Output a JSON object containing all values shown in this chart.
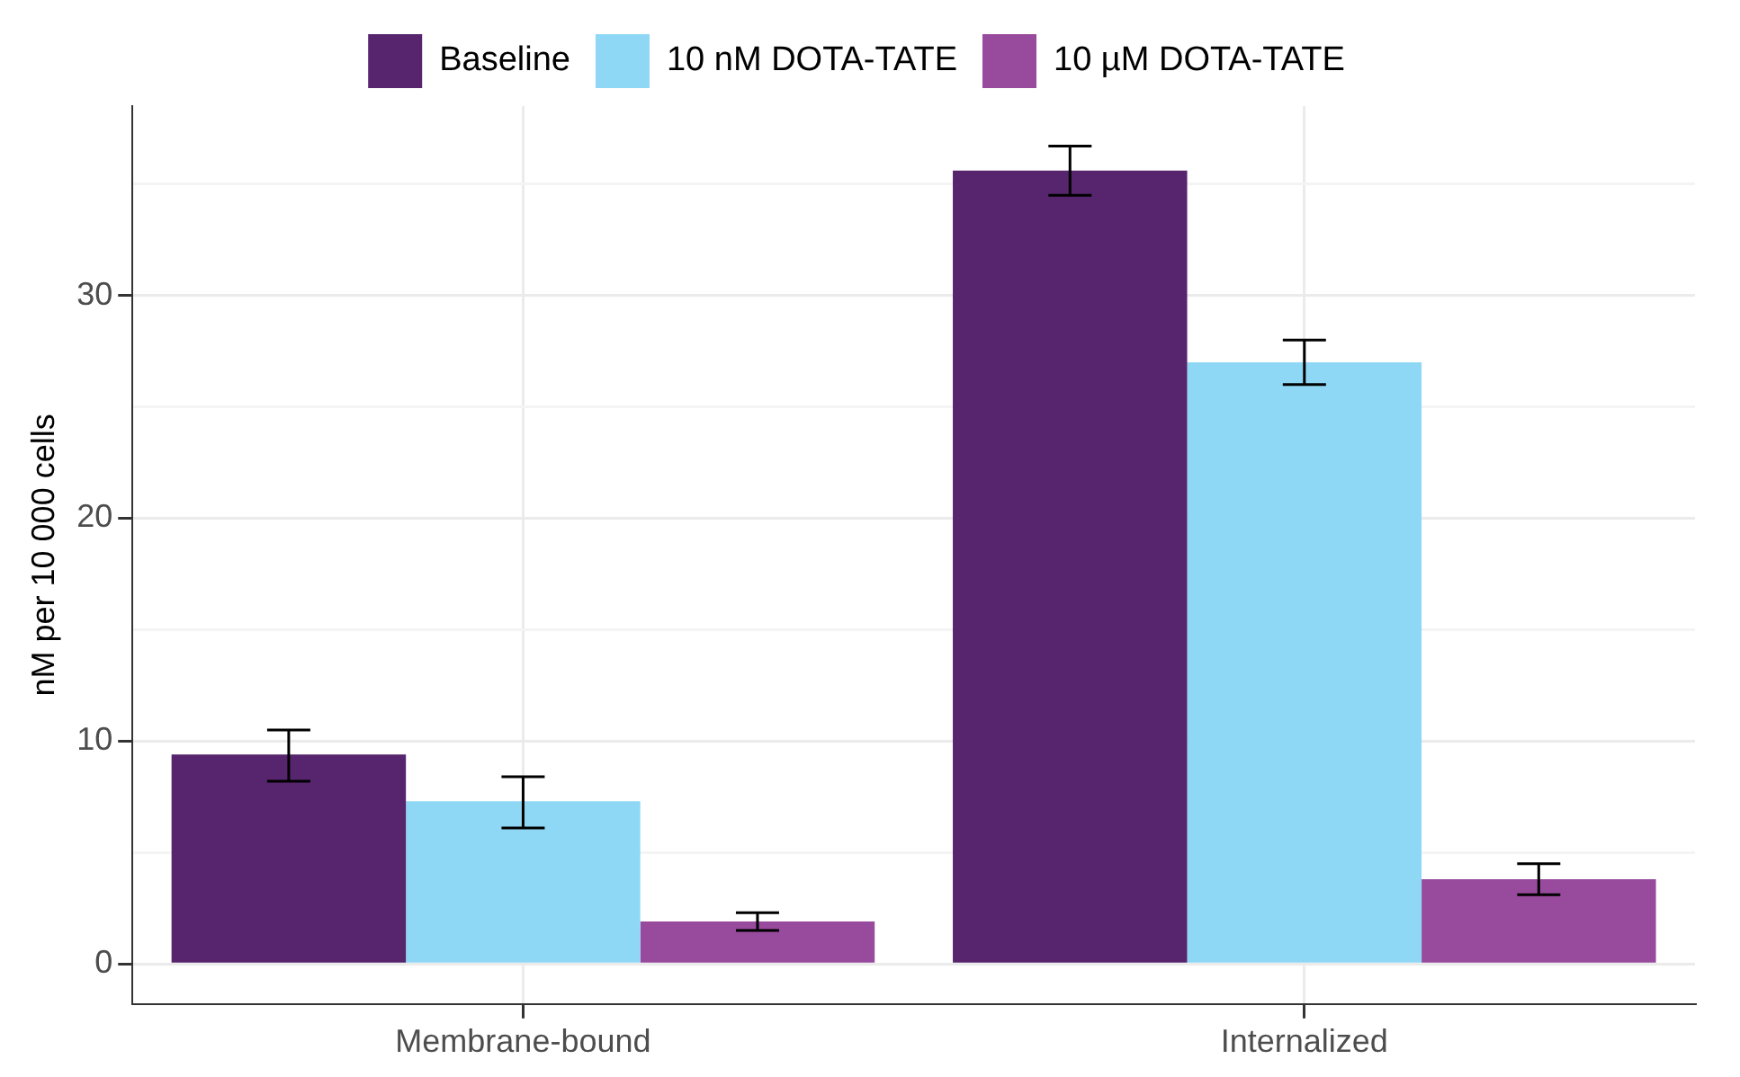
{
  "chart_data": {
    "type": "bar",
    "ylabel": "nM per 10 000 cells",
    "categories": [
      "Membrane-bound",
      "Internalized"
    ],
    "series": [
      {
        "name": "Baseline",
        "color": "#56256e",
        "values": [
          9.4,
          35.6
        ],
        "errors": [
          [
            8.2,
            10.5
          ],
          [
            34.5,
            36.7
          ]
        ]
      },
      {
        "name": "10 nM DOTA-TATE",
        "color": "#8fd8f5",
        "values": [
          7.3,
          27.0
        ],
        "errors": [
          [
            6.1,
            8.4
          ],
          [
            26.0,
            28.0
          ]
        ]
      },
      {
        "name": "10 µM DOTA-TATE",
        "color": "#984a9c",
        "values": [
          1.9,
          3.8
        ],
        "errors": [
          [
            1.5,
            2.3
          ],
          [
            3.1,
            4.5
          ]
        ]
      }
    ],
    "ylim": [
      -1.8,
      38.5
    ],
    "yticks": [
      0,
      {
        "value": 5,
        "label": null
      },
      10,
      {
        "value": 15,
        "label": null
      },
      20,
      {
        "value": 25,
        "label": null
      },
      30,
      {
        "value": 35,
        "label": null
      }
    ],
    "grid": true,
    "legend": "top"
  }
}
